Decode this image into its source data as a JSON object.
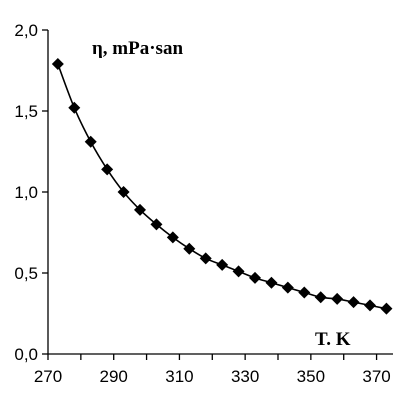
{
  "chart_data": {
    "type": "scatter",
    "title": "",
    "xlabel": "T. K",
    "ylabel": "η, mPa·san",
    "xlim": [
      270,
      375
    ],
    "ylim": [
      0.0,
      2.0
    ],
    "xticks": [
      270,
      290,
      310,
      330,
      350,
      370
    ],
    "xtick_labels": [
      "270",
      "290",
      "310",
      "330",
      "350",
      "370"
    ],
    "yticks": [
      0.0,
      0.5,
      1.0,
      1.5,
      2.0
    ],
    "ytick_labels": [
      "0,0",
      "0,5",
      "1,0",
      "1,5",
      "2,0"
    ],
    "grid": false,
    "legend": "none",
    "series": [
      {
        "marker": "diamond",
        "smooth_line": true,
        "color": "#000000",
        "x": [
          273,
          278,
          283,
          288,
          293,
          298,
          303,
          308,
          313,
          318,
          323,
          328,
          333,
          338,
          343,
          348,
          353,
          358,
          363,
          368,
          373
        ],
        "y": [
          1.79,
          1.52,
          1.31,
          1.14,
          1.0,
          0.89,
          0.8,
          0.72,
          0.65,
          0.59,
          0.55,
          0.51,
          0.47,
          0.44,
          0.41,
          0.38,
          0.35,
          0.34,
          0.32,
          0.3,
          0.28
        ]
      }
    ]
  }
}
